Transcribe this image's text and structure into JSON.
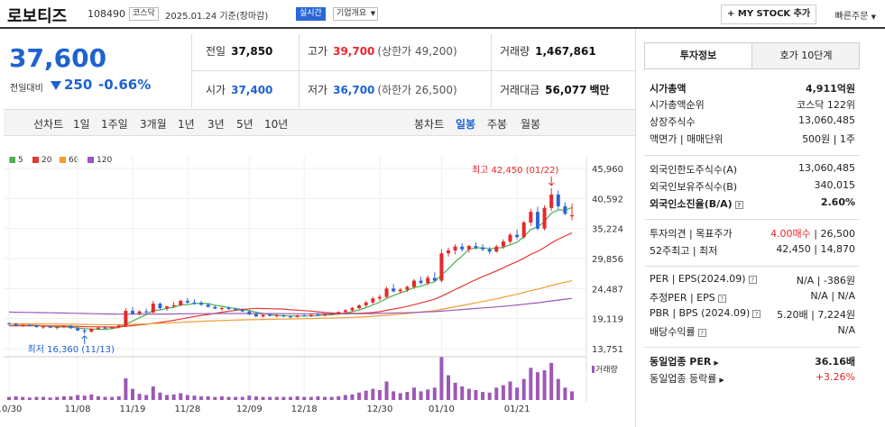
{
  "header": {
    "name": "로보티즈",
    "code": "108490",
    "market": "코스닥",
    "date_text": "2025.01.24 기준(장마감)",
    "realtime": "실시간",
    "overview": "기업개요",
    "mystock": "MY STOCK 추가",
    "quick_order": "빠른주문"
  },
  "price": {
    "current": "37,600",
    "change_label": "전일대비",
    "change": "250",
    "change_pct": "-0.66%"
  },
  "quote": {
    "prev_close": {
      "label": "전일",
      "value": "37,850"
    },
    "high": {
      "label": "고가",
      "value": "39,700",
      "sub": "(상한가 49,200)"
    },
    "volume": {
      "label": "거래량",
      "value": "1,467,861"
    },
    "open": {
      "label": "시가",
      "value": "37,400"
    },
    "low": {
      "label": "저가",
      "value": "36,700",
      "sub": "(하한가 26,500)"
    },
    "amount": {
      "label": "거래대금",
      "value": "56,077",
      "unit": "백만"
    }
  },
  "periods": {
    "line_label": "선차트",
    "line": [
      "1일",
      "1주일",
      "3개월",
      "1년",
      "3년",
      "5년",
      "10년"
    ],
    "candle_label": "봉차트",
    "candle": [
      "일봉",
      "주봉",
      "월봉"
    ],
    "active": "일봉"
  },
  "legend": [
    {
      "label": "5",
      "color": "#4caf50"
    },
    {
      "label": "20",
      "color": "#e53935"
    },
    {
      "label": "60",
      "color": "#f39c33"
    },
    {
      "label": "120",
      "color": "#9b59b6"
    }
  ],
  "chart_data": {
    "type": "candlestick",
    "y_ticks": [
      "45,960",
      "40,592",
      "35,224",
      "29,856",
      "24,487",
      "19,119",
      "13,751"
    ],
    "x_ticks": [
      "10/30",
      "11/08",
      "11/19",
      "11/28",
      "12/09",
      "12/18",
      "12/30",
      "01/10",
      "01/21"
    ],
    "high_annot": "최고 42,450 (01/22)",
    "low_annot": "최저 16,360 (11/13)",
    "volume_label": "거래량",
    "candles": [
      [
        18300,
        18400,
        17900,
        18200
      ],
      [
        18200,
        18300,
        17700,
        17900
      ],
      [
        17900,
        18100,
        17600,
        18000
      ],
      [
        18000,
        18100,
        17700,
        17800
      ],
      [
        17800,
        18000,
        17500,
        17600
      ],
      [
        17600,
        17800,
        17300,
        17700
      ],
      [
        17700,
        17900,
        17400,
        17500
      ],
      [
        17500,
        17700,
        17200,
        17600
      ],
      [
        17600,
        17900,
        17400,
        17800
      ],
      [
        17800,
        18000,
        17300,
        17400
      ],
      [
        17400,
        17600,
        16900,
        17000
      ],
      [
        17000,
        17300,
        16360,
        16800
      ],
      [
        16800,
        17400,
        16600,
        17300
      ],
      [
        17300,
        17600,
        17100,
        17500
      ],
      [
        17500,
        17800,
        17300,
        17400
      ],
      [
        17400,
        17700,
        17200,
        17600
      ],
      [
        17600,
        18000,
        17400,
        17900
      ],
      [
        17700,
        21000,
        17600,
        20500
      ],
      [
        20500,
        21200,
        19800,
        20000
      ],
      [
        20000,
        20600,
        19700,
        20400
      ],
      [
        20400,
        20900,
        20000,
        20200
      ],
      [
        20200,
        22300,
        20100,
        21800
      ],
      [
        21800,
        22000,
        20600,
        21000
      ],
      [
        21000,
        21400,
        20500,
        21300
      ],
      [
        21300,
        22100,
        21000,
        21500
      ],
      [
        21500,
        22500,
        21300,
        22300
      ],
      [
        22300,
        22800,
        21800,
        22000
      ],
      [
        22000,
        22600,
        21600,
        21900
      ],
      [
        21900,
        22300,
        21400,
        21600
      ],
      [
        21600,
        21900,
        21100,
        21200
      ],
      [
        21200,
        21500,
        20800,
        20900
      ],
      [
        20900,
        21200,
        20500,
        21000
      ],
      [
        21000,
        21300,
        20700,
        20800
      ],
      [
        20800,
        21100,
        20500,
        20700
      ],
      [
        20700,
        20900,
        20300,
        20400
      ],
      [
        20400,
        20600,
        19700,
        19900
      ],
      [
        19900,
        20200,
        19400,
        19500
      ],
      [
        19500,
        19900,
        19300,
        19800
      ],
      [
        19800,
        20000,
        19500,
        19600
      ],
      [
        19600,
        19900,
        19300,
        19700
      ],
      [
        19700,
        19900,
        19400,
        19500
      ],
      [
        19500,
        19700,
        19200,
        19400
      ],
      [
        19400,
        19800,
        19300,
        19700
      ],
      [
        19700,
        19900,
        19500,
        19600
      ],
      [
        19600,
        19900,
        19400,
        19800
      ],
      [
        19800,
        20100,
        19600,
        19700
      ],
      [
        19700,
        20000,
        19500,
        19900
      ],
      [
        19900,
        20100,
        19700,
        20000
      ],
      [
        20000,
        20400,
        19800,
        20300
      ],
      [
        20300,
        20800,
        20100,
        20600
      ],
      [
        20600,
        21200,
        20400,
        21000
      ],
      [
        21000,
        21700,
        20800,
        21500
      ],
      [
        21500,
        22300,
        21200,
        22000
      ],
      [
        22000,
        23000,
        21700,
        22700
      ],
      [
        22700,
        23400,
        22300,
        23000
      ],
      [
        23000,
        24800,
        22800,
        24500
      ],
      [
        24500,
        25300,
        23800,
        24000
      ],
      [
        24000,
        24600,
        23600,
        24300
      ],
      [
        24300,
        25000,
        23900,
        24800
      ],
      [
        24800,
        26200,
        24400,
        25900
      ],
      [
        25900,
        26600,
        25200,
        25500
      ],
      [
        25500,
        26800,
        25100,
        26400
      ],
      [
        26400,
        27400,
        25800,
        25900
      ],
      [
        25900,
        31500,
        25600,
        30800
      ],
      [
        30800,
        31800,
        30200,
        31300
      ],
      [
        31300,
        32400,
        30600,
        32000
      ],
      [
        32000,
        32600,
        31100,
        31500
      ],
      [
        31500,
        32300,
        30900,
        32100
      ],
      [
        32100,
        32700,
        31500,
        31800
      ],
      [
        31800,
        32400,
        31200,
        31500
      ],
      [
        31500,
        31900,
        30700,
        31100
      ],
      [
        31100,
        32300,
        30900,
        32000
      ],
      [
        32000,
        33300,
        31600,
        32900
      ],
      [
        32900,
        34400,
        32500,
        34100
      ],
      [
        34100,
        35000,
        33300,
        33700
      ],
      [
        33700,
        36600,
        33400,
        36300
      ],
      [
        36300,
        38700,
        35700,
        38200
      ],
      [
        38200,
        39100,
        34900,
        35200
      ],
      [
        35200,
        39400,
        34900,
        38900
      ],
      [
        38900,
        42450,
        38400,
        41300
      ],
      [
        41300,
        42000,
        38700,
        39200
      ],
      [
        39200,
        39900,
        37600,
        37850
      ],
      [
        37400,
        39700,
        36700,
        37600
      ]
    ],
    "volumes": [
      5,
      6,
      5,
      4,
      5,
      5,
      4,
      5,
      6,
      6,
      8,
      7,
      9,
      6,
      5,
      5,
      6,
      35,
      18,
      10,
      8,
      22,
      12,
      8,
      9,
      11,
      8,
      7,
      6,
      6,
      5,
      6,
      5,
      5,
      5,
      7,
      6,
      5,
      5,
      5,
      5,
      5,
      6,
      5,
      5,
      6,
      5,
      5,
      6,
      8,
      9,
      12,
      15,
      18,
      16,
      30,
      14,
      11,
      13,
      20,
      14,
      17,
      20,
      70,
      40,
      28,
      22,
      18,
      16,
      13,
      12,
      20,
      24,
      30,
      20,
      34,
      52,
      45,
      48,
      60,
      34,
      20,
      14
    ]
  },
  "side": {
    "tab_info": "투자정보",
    "tab_hoga": "호가 10단계",
    "rows": [
      {
        "k": "시가총액",
        "v": "4,911억원",
        "kb": true,
        "vb": true
      },
      {
        "k": "시가총액순위",
        "v": "코스닥 122위"
      },
      {
        "k": "상장주식수",
        "v": "13,060,485"
      },
      {
        "k": "액면가 | 매매단위",
        "v": "500원 | 1주"
      },
      {
        "k": "외국인한도주식수(A)",
        "v": "13,060,485"
      },
      {
        "k": "외국인보유주식수(B)",
        "v": "340,015"
      },
      {
        "k": "외국인소진율(B/A)",
        "v": "2.60%",
        "kb": true,
        "vb": true,
        "q": true
      },
      {
        "k": "투자의견 | 목표주가",
        "v": "4.00매수 | 26,500",
        "red_part": true
      },
      {
        "k": "52주최고 | 최저",
        "v": "42,450 | 14,870"
      },
      {
        "k": "PER | EPS(2024.09)",
        "v": "N/A | -386원",
        "q": true
      },
      {
        "k": "추정PER | EPS",
        "v": "N/A | N/A",
        "q": true
      },
      {
        "k": "PBR | BPS (2024.09)",
        "v": "5.20배 | 7,224원",
        "q": true
      },
      {
        "k": "배당수익률",
        "v": "N/A",
        "q": true
      },
      {
        "k": "동일업종 PER",
        "v": "36.16배",
        "kb": true,
        "vb": true,
        "arrow": true
      },
      {
        "k": "동일업종 등락률",
        "v": "+3.26%",
        "red": true,
        "arrow": true
      }
    ]
  }
}
